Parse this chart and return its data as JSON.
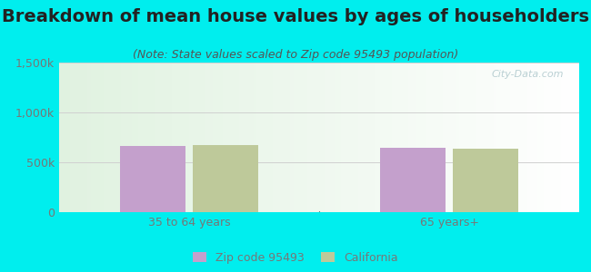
{
  "title": "Breakdown of mean house values by ages of householders",
  "subtitle": "(Note: State values scaled to Zip code 95493 population)",
  "categories": [
    "35 to 64 years",
    "65 years+"
  ],
  "zip_values": [
    660000,
    650000
  ],
  "ca_values": [
    670000,
    635000
  ],
  "bar_color_zip": "#c4a0cc",
  "bar_color_ca": "#bec99a",
  "ylim": [
    0,
    1500000
  ],
  "yticks": [
    0,
    500000,
    1000000,
    1500000
  ],
  "ytick_labels": [
    "0",
    "500k",
    "1,000k",
    "1,500k"
  ],
  "background_outer": "#00EEEE",
  "legend_zip_label": "Zip code 95493",
  "legend_ca_label": "California",
  "title_fontsize": 14,
  "subtitle_fontsize": 9,
  "tick_color": "#777777",
  "grid_color": "#d0d0d0",
  "watermark": "City-Data.com"
}
